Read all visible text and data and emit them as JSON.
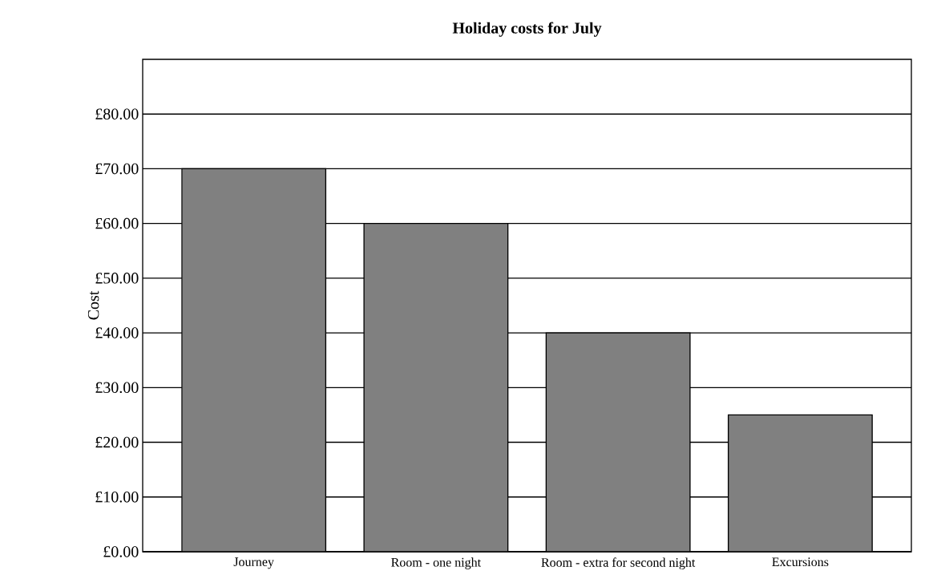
{
  "chart_data": {
    "type": "bar",
    "title": "Holiday costs for July",
    "ylabel": "Cost",
    "categories": [
      "Journey",
      "Room - one night",
      "Room - extra for second night",
      "Excursions"
    ],
    "values": [
      70,
      60,
      40,
      25
    ],
    "color": "#808080",
    "ylim": [
      0,
      90
    ],
    "yticks": [
      {
        "value": 0,
        "label": "£0.00"
      },
      {
        "value": 10,
        "label": "£10.00"
      },
      {
        "value": 20,
        "label": "£20.00"
      },
      {
        "value": 30,
        "label": "£30.00"
      },
      {
        "value": 40,
        "label": "£40.00"
      },
      {
        "value": 50,
        "label": "£50.00"
      },
      {
        "value": 60,
        "label": "£60.00"
      },
      {
        "value": 70,
        "label": "£70.00"
      },
      {
        "value": 80,
        "label": "£80.00"
      }
    ],
    "grid": "y"
  }
}
